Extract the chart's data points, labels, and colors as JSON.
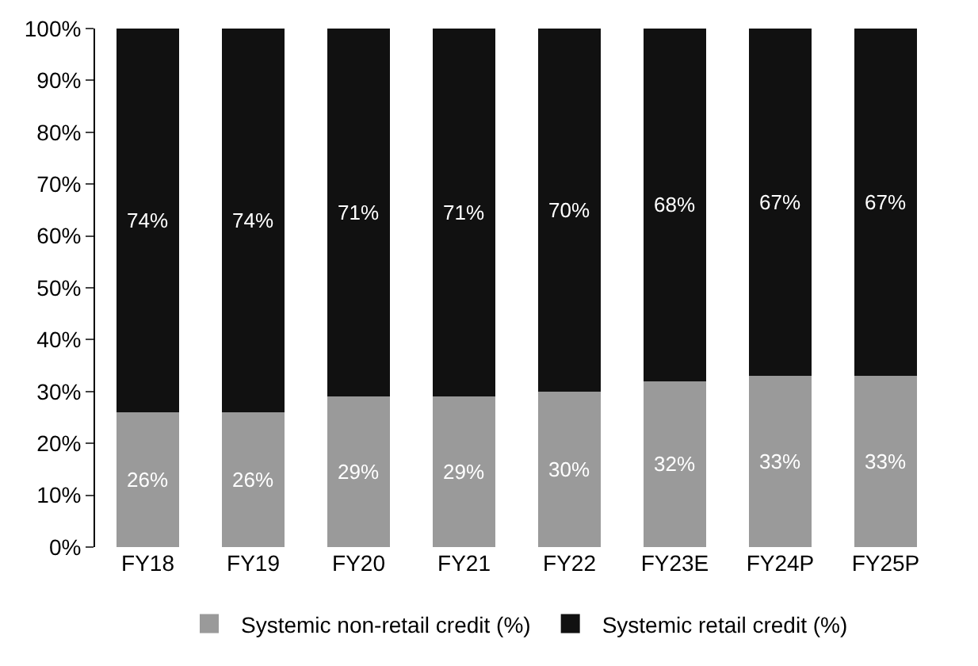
{
  "chart_data": {
    "type": "bar",
    "stacked": true,
    "categories": [
      "FY18",
      "FY19",
      "FY20",
      "FY21",
      "FY22",
      "FY23E",
      "FY24P",
      "FY25P"
    ],
    "series": [
      {
        "name": "Systemic non-retail credit (%)",
        "color": "#9a9a9a",
        "values": [
          26,
          26,
          29,
          29,
          30,
          32,
          33,
          33
        ],
        "value_labels": [
          "26%",
          "26%",
          "29%",
          "29%",
          "30%",
          "32%",
          "33%",
          "33%"
        ]
      },
      {
        "name": "Systemic retail credit (%)",
        "color": "#111111",
        "values": [
          74,
          74,
          71,
          71,
          70,
          68,
          67,
          67
        ],
        "value_labels": [
          "74%",
          "74%",
          "71%",
          "71%",
          "70%",
          "68%",
          "67%",
          "67%"
        ]
      }
    ],
    "ylim": [
      0,
      100
    ],
    "yticks": [
      {
        "value": 0,
        "label": "0%"
      },
      {
        "value": 10,
        "label": "10%"
      },
      {
        "value": 20,
        "label": "20%"
      },
      {
        "value": 30,
        "label": "30%"
      },
      {
        "value": 40,
        "label": "40%"
      },
      {
        "value": 50,
        "label": "50%"
      },
      {
        "value": 60,
        "label": "60%"
      },
      {
        "value": 70,
        "label": "70%"
      },
      {
        "value": 80,
        "label": "80%"
      },
      {
        "value": 90,
        "label": "90%"
      },
      {
        "value": 100,
        "label": "100%"
      }
    ],
    "legend": "bottom"
  }
}
